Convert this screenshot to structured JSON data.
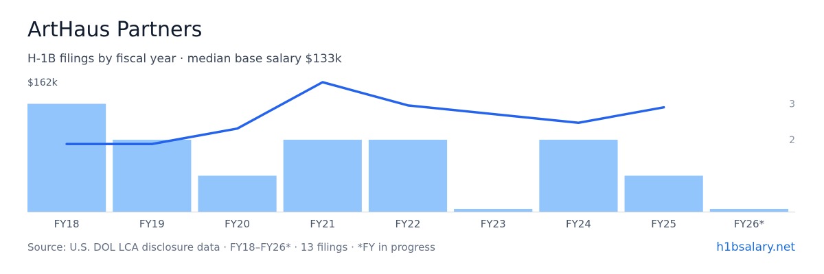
{
  "header": {
    "title": "ArtHaus Partners",
    "subtitle": "H-1B filings by fiscal year · median base salary $133k"
  },
  "footer": {
    "source": "Source: U.S. DOL LCA disclosure data · FY18–FY26* · 13 filings · *FY in progress",
    "link": "h1bsalary.net"
  },
  "colors": {
    "bar": "#93c5fd",
    "line": "#2563eb",
    "axis_text": "#475467",
    "right_axis_text": "#8a94a6",
    "baseline": "#d0d5dd"
  },
  "chart_data": {
    "type": "bar",
    "categories": [
      "FY18",
      "FY19",
      "FY20",
      "FY21",
      "FY22",
      "FY23",
      "FY24",
      "FY25",
      "FY26*"
    ],
    "series": [
      {
        "type": "bar",
        "axis": "right",
        "values": [
          3,
          2,
          1,
          2,
          2,
          0,
          2,
          1,
          0
        ]
      },
      {
        "type": "line",
        "axis": "left",
        "values": [
          130,
          130,
          138,
          162,
          150,
          null,
          141,
          149,
          null
        ]
      }
    ],
    "left_axis": {
      "top_label": "$162k",
      "max": 162,
      "min": 95
    },
    "right_axis": {
      "ticks": [
        "3",
        "2"
      ],
      "max": 3.6,
      "min": 0
    },
    "xlabel": "",
    "ylabel": "",
    "grid": false,
    "legend": "none"
  }
}
